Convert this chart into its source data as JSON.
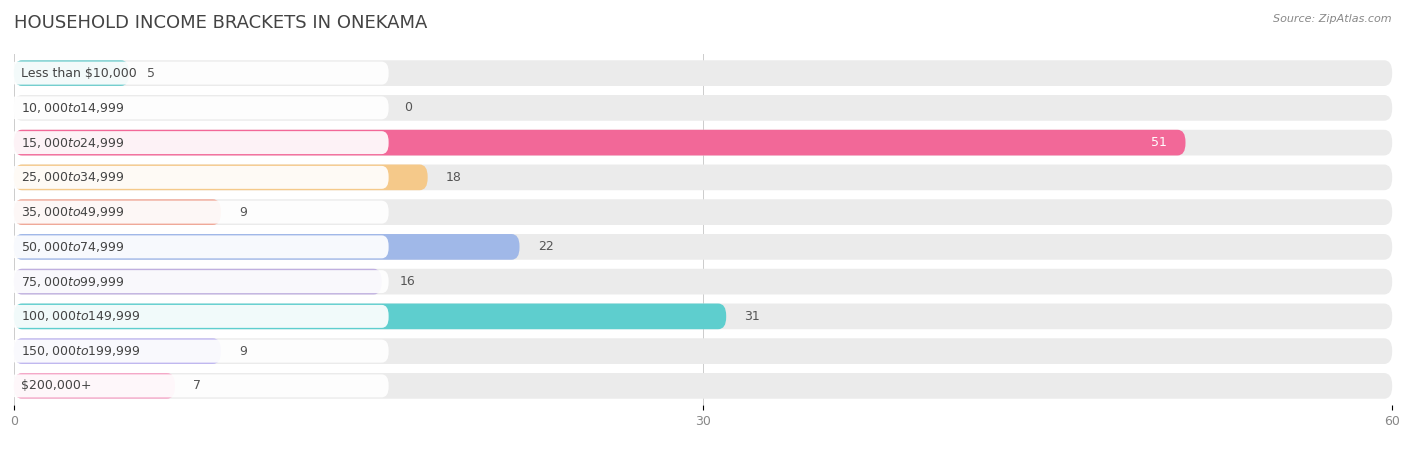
{
  "title": "HOUSEHOLD INCOME BRACKETS IN ONEKAMA",
  "source": "Source: ZipAtlas.com",
  "categories": [
    "Less than $10,000",
    "$10,000 to $14,999",
    "$15,000 to $24,999",
    "$25,000 to $34,999",
    "$35,000 to $49,999",
    "$50,000 to $74,999",
    "$75,000 to $99,999",
    "$100,000 to $149,999",
    "$150,000 to $199,999",
    "$200,000+"
  ],
  "values": [
    5,
    0,
    51,
    18,
    9,
    22,
    16,
    31,
    9,
    7
  ],
  "bar_colors": [
    "#72cece",
    "#b0b0e0",
    "#f26898",
    "#f5c98a",
    "#f0a898",
    "#a0b8e8",
    "#c0b0e0",
    "#5ecece",
    "#c0b8f0",
    "#f5a8c8"
  ],
  "xlim": [
    0,
    60
  ],
  "xticks": [
    0,
    30,
    60
  ],
  "bg_color": "#ffffff",
  "row_bg_color": "#ebebeb",
  "title_fontsize": 13,
  "label_fontsize": 9,
  "value_fontsize": 9
}
